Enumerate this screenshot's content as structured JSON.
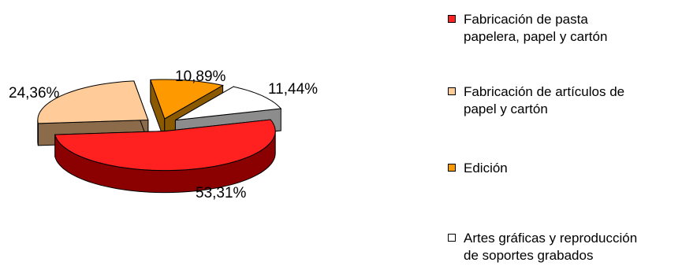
{
  "chart_data": {
    "type": "pie",
    "subtype": "3d-exploded",
    "slices": [
      {
        "label": "Fabricación de pasta papelera, papel y cartón",
        "legend_text": "Fabricación de pasta\npapelera, papel y cartón",
        "value": 53.31,
        "value_label": "53,31%",
        "color": "#ff2020",
        "side_color": "#8b0000"
      },
      {
        "label": "Fabricación de artículos de papel y cartón",
        "legend_text": "Fabricación de artículos de\npapel y cartón",
        "value": 24.36,
        "value_label": "24,36%",
        "color": "#ffcc99",
        "side_color": "#8b6b4a"
      },
      {
        "label": "Edición",
        "legend_text": "Edición",
        "value": 10.89,
        "value_label": "10,89%",
        "color": "#ff9900",
        "side_color": "#8b5a00"
      },
      {
        "label": "Artes gráficas y reproducción de soportes grabados",
        "legend_text": "Artes gráficas y reproducción\nde soportes grabados",
        "value": 11.44,
        "value_label": "11,44%",
        "color": "#ffffff",
        "side_color": "#8c8c8c"
      }
    ],
    "legend_position": "right"
  }
}
